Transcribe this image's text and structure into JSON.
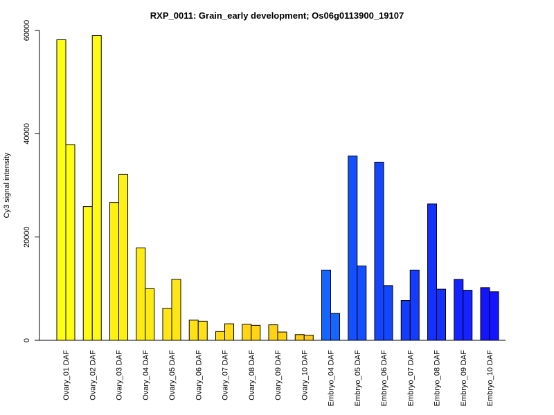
{
  "chart_data": {
    "type": "bar",
    "title": "RXP_0011: Grain_early development; Os06g0113900_19107",
    "xlabel": "",
    "ylabel": "Cy3 signal intensity",
    "ylim": [
      0,
      60000
    ],
    "yticks": [
      0,
      20000,
      40000,
      60000
    ],
    "grid": false,
    "legend": "none",
    "categories": [
      "Ovary_01 DAF",
      "Ovary_02 DAF",
      "Ovary_03 DAF",
      "Ovary_04 DAF",
      "Ovary_05 DAF",
      "Ovary_06 DAF",
      "Ovary_07 DAF",
      "Ovary_08 DAF",
      "Ovary_09 DAF",
      "Ovary_10 DAF",
      "Embryo_04 DAF",
      "Embryo_05 DAF",
      "Embryo_06 DAF",
      "Embryo_07 DAF",
      "Embryo_08 DAF",
      "Embryo_09 DAF",
      "Embryo_10 DAF"
    ],
    "category_colors": [
      "#FFFF14",
      "#FFFA14",
      "#FFF014",
      "#FFEB14",
      "#FFE614",
      "#FFE114",
      "#FFDB14",
      "#FFD514",
      "#FFD214",
      "#FFCC14",
      "#1466FF",
      "#1450FF",
      "#1446FF",
      "#143CFF",
      "#1432FF",
      "#1423FF",
      "#1414FF"
    ],
    "series": [
      {
        "values": [
          58200,
          25900,
          26700,
          17900,
          6200,
          3900,
          1700,
          3100,
          3000,
          1100,
          13600,
          35700,
          34500,
          7700,
          26400,
          11800,
          10200
        ]
      },
      {
        "values": [
          37900,
          59000,
          32100,
          10000,
          11800,
          3700,
          3200,
          2900,
          1600,
          1000,
          5200,
          14400,
          10600,
          13600,
          9900,
          9700,
          9400
        ]
      }
    ]
  }
}
